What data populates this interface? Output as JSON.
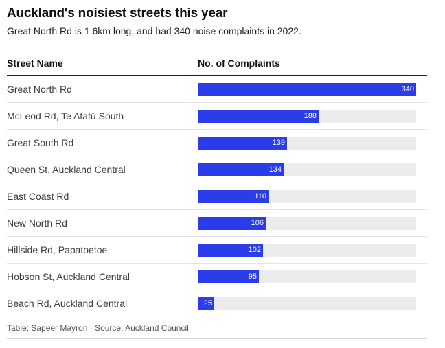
{
  "title": "Auckland's noisiest streets this year",
  "subtitle": "Great North Rd is 1.6km long, and had 340 noise complaints in 2022.",
  "table": {
    "col_street": "Street Name",
    "col_count": "No. of Complaints"
  },
  "source": "Table: Sapeer Mayron · Source: Auckland Council",
  "colors": {
    "bar": "#2b3deb",
    "track": "#ececec"
  },
  "chart_data": {
    "type": "bar",
    "title": "Auckland's noisiest streets this year",
    "subtitle": "Great North Rd is 1.6km long, and had 340 noise complaints in 2022.",
    "xlabel": "No. of Complaints",
    "ylabel": "Street Name",
    "categories": [
      "Great North Rd",
      "McLeod Rd, Te Atatū South",
      "Great South Rd",
      "Queen St, Auckland Central",
      "East Coast Rd",
      "New North Rd",
      "Hillside Rd, Papatoetoe",
      "Hobson St, Auckland Central",
      "Beach Rd, Auckland Central"
    ],
    "values": [
      340,
      188,
      139,
      134,
      110,
      106,
      102,
      95,
      25
    ],
    "xlim": [
      0,
      340
    ],
    "orientation": "horizontal"
  }
}
